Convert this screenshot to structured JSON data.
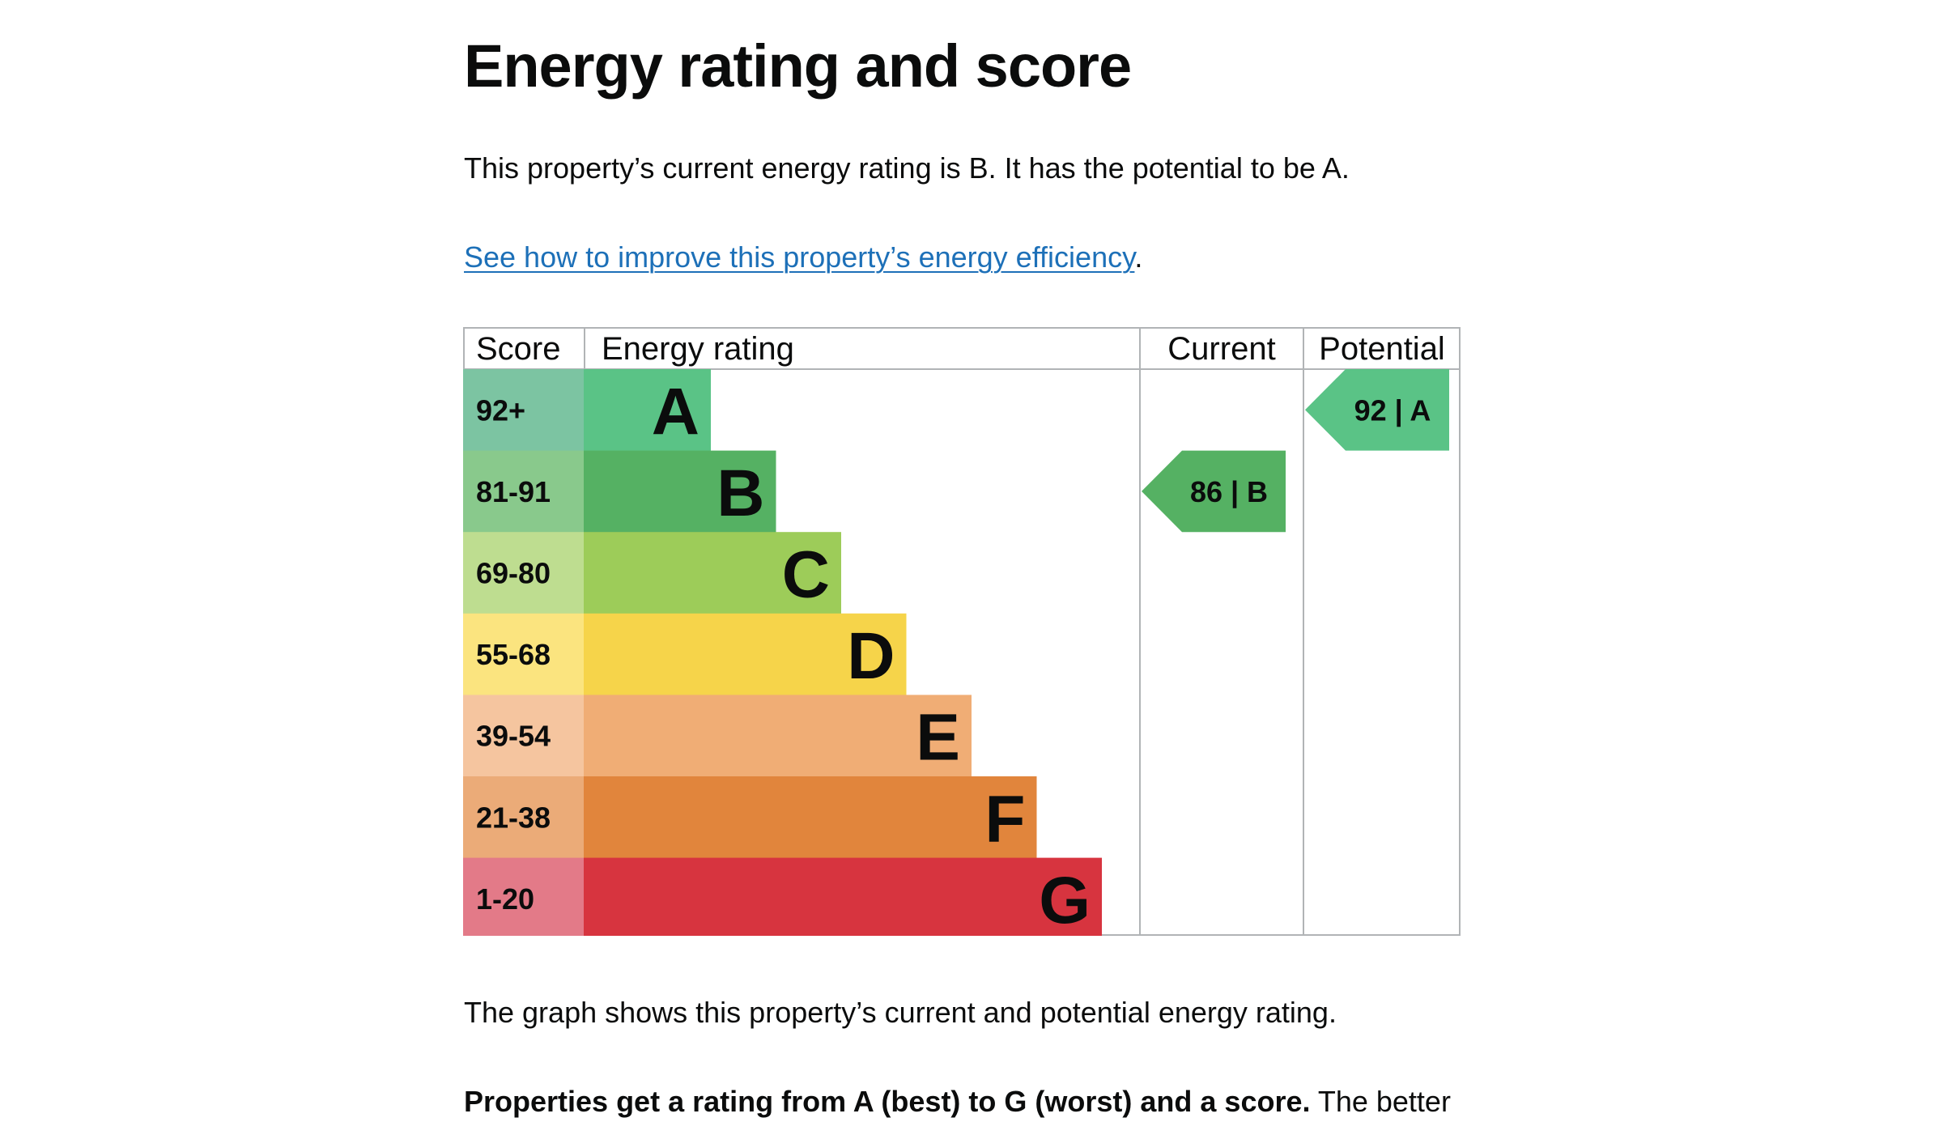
{
  "page": {
    "title": "Energy rating and score",
    "intro": "This property’s current energy rating is B. It has the potential to be A.",
    "improve_link": "See how to improve this property’s energy efficiency",
    "improve_link_suffix": ".",
    "graph_caption": "The graph shows this property’s current and potential energy rating.",
    "rating_note_bold": "Properties get a rating from A (best) to G (worst) and a score.",
    "rating_note_rest": " The better"
  },
  "chart_data": {
    "type": "table",
    "headers": {
      "score": "Score",
      "energy_rating": "Energy rating",
      "current": "Current",
      "potential": "Potential"
    },
    "bands": [
      {
        "letter": "A",
        "score": "92+",
        "color": "#5ac386",
        "score_color": "#7cc4a2"
      },
      {
        "letter": "B",
        "score": "81-91",
        "color": "#55b163",
        "score_color": "#89c98c"
      },
      {
        "letter": "C",
        "score": "69-80",
        "color": "#9dcc59",
        "score_color": "#bedd90"
      },
      {
        "letter": "D",
        "score": "55-68",
        "color": "#f6d44a",
        "score_color": "#fbe47f"
      },
      {
        "letter": "E",
        "score": "39-54",
        "color": "#f0ad75",
        "score_color": "#f5c59f"
      },
      {
        "letter": "F",
        "score": "21-38",
        "color": "#e1853c",
        "score_color": "#ebab78"
      },
      {
        "letter": "G",
        "score": "1-20",
        "color": "#d7343f",
        "score_color": "#e37a88"
      }
    ],
    "current": {
      "score": 86,
      "band": "B",
      "label": "86 | B",
      "color": "#55b163"
    },
    "potential": {
      "score": 92,
      "band": "A",
      "label": "92 | A",
      "color": "#5ac386"
    }
  }
}
